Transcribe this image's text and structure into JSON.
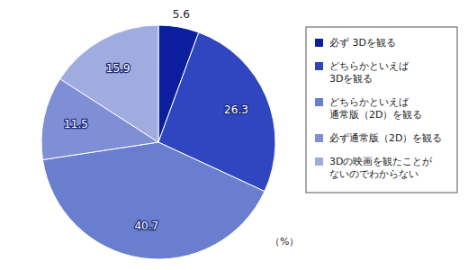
{
  "chart_data": {
    "type": "pie",
    "categories": [
      "必ず 3Dを観る",
      "どちらかといえば\n3Dを観る",
      "どちらかといえば\n通常版（2D）を観る",
      "必ず通常版（2D）を観る",
      "3Dの映画を観たことが\nないのでわからない"
    ],
    "values": [
      5.6,
      26.3,
      40.7,
      11.5,
      15.9
    ],
    "colors": [
      "#0b1f9e",
      "#3046c0",
      "#6a7ecf",
      "#7f8fd6",
      "#a0abe0"
    ],
    "data_labels": true,
    "legend": "right",
    "annotations": [
      "（%）"
    ]
  }
}
